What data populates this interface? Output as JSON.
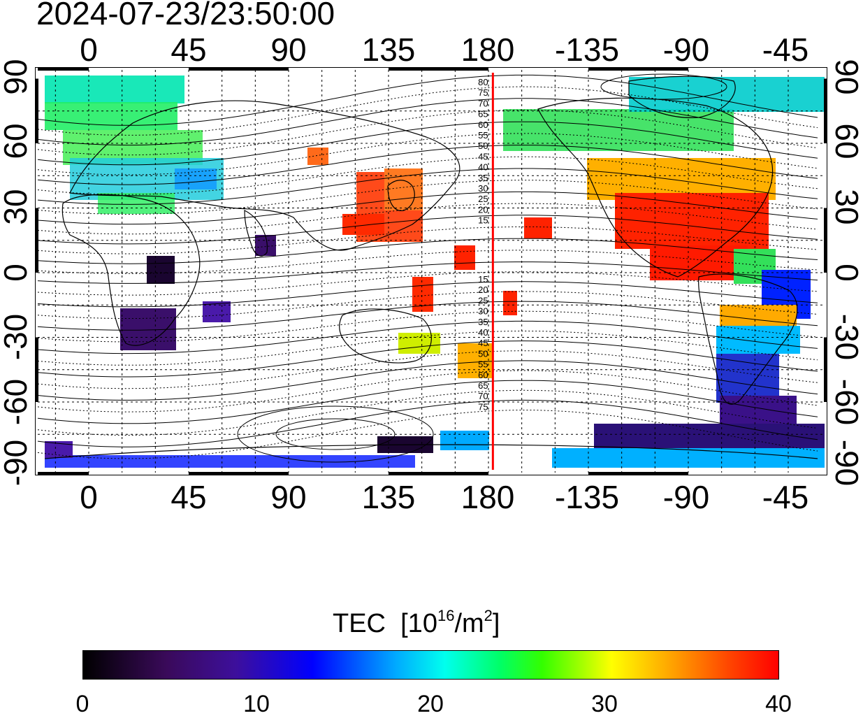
{
  "timestamp": "2024-07-23/23:50:00",
  "longitude_ticks": [
    "0",
    "45",
    "90",
    "135",
    "180",
    "-135",
    "-90",
    "-45"
  ],
  "latitude_ticks": [
    "90",
    "60",
    "30",
    "0",
    "-30",
    "-60",
    "-90"
  ],
  "magnetic_lat_labels_north": [
    "80",
    "75",
    "70",
    "65",
    "60",
    "55",
    "50",
    "45",
    "40",
    "35",
    "30",
    "25",
    "20",
    "15"
  ],
  "magnetic_lat_labels_south": [
    "15",
    "20",
    "25",
    "30",
    "35",
    "40",
    "45",
    "50",
    "55",
    "60",
    "65",
    "70",
    "75"
  ],
  "marker_meridian_lon": 182,
  "colors": {
    "marker": "#ff0000",
    "frame": "#000000",
    "background": "#ffffff"
  },
  "colorbar": {
    "title_prefix": "TEC",
    "title_unit_base": "[10",
    "title_exp1": "16",
    "title_mid": "/m",
    "title_exp2": "2",
    "title_close": "]",
    "tick_labels": [
      "0",
      "10",
      "20",
      "30",
      "40"
    ],
    "min": 0,
    "max": 40
  }
}
